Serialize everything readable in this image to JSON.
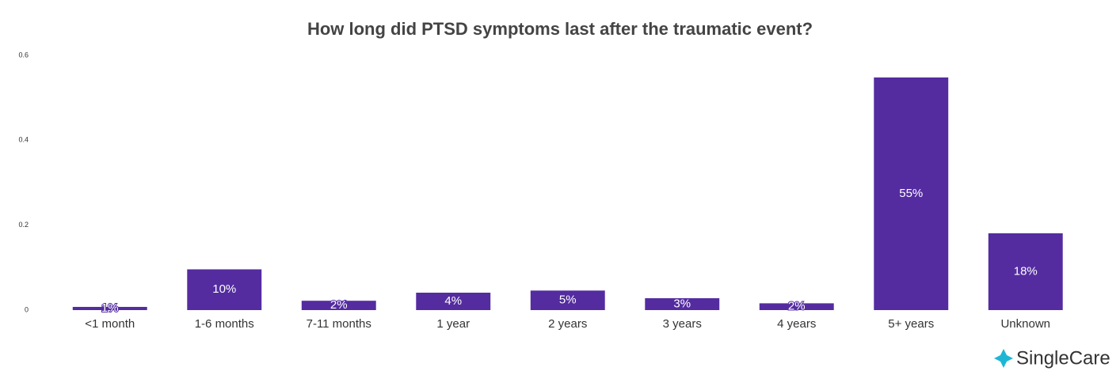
{
  "chart_data": {
    "type": "bar",
    "title": "How long did PTSD symptoms last after the traumatic event?",
    "categories": [
      "<1 month",
      "1-6 months",
      "7-11 months",
      "1 year",
      "2 years",
      "3 years",
      "4 years",
      "5+ years",
      "Unknown"
    ],
    "values": [
      0.0075,
      0.096,
      0.022,
      0.041,
      0.046,
      0.028,
      0.016,
      0.548,
      0.181
    ],
    "value_labels": [
      "1%",
      "10%",
      "2%",
      "4%",
      "5%",
      "3%",
      "2%",
      "55%",
      "18%"
    ],
    "color": "#542ca0",
    "ylim": [
      0,
      0.6
    ],
    "yticks": [
      0,
      0.2,
      0.4,
      0.6
    ],
    "grid": false
  },
  "brand": "SingleCare"
}
